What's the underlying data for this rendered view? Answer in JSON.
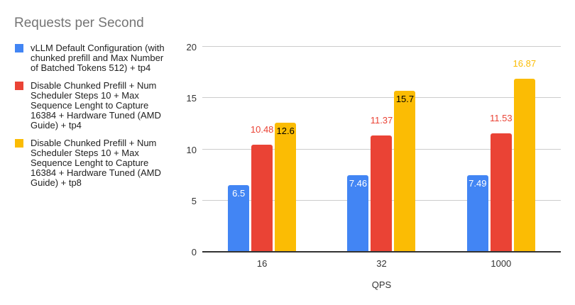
{
  "chart_data": {
    "type": "bar",
    "title": "Requests per Second",
    "xlabel": "QPS",
    "ylabel": "",
    "categories": [
      "16",
      "32",
      "1000"
    ],
    "ylim": [
      0,
      20
    ],
    "yticks": [
      0,
      5,
      10,
      15,
      20
    ],
    "grid": true,
    "legend_position": "left",
    "series": [
      {
        "name": "vLLM Default Configuration (with chunked prefill and Max Number of Batched Tokens 512) + tp4",
        "color": "#4285F4",
        "values": [
          6.5,
          7.46,
          7.49
        ],
        "data_labels": [
          {
            "text": "6.5",
            "position": "inside",
            "color": "#ffffff"
          },
          {
            "text": "7.46",
            "position": "inside",
            "color": "#ffffff"
          },
          {
            "text": "7.49",
            "position": "inside",
            "color": "#ffffff"
          }
        ]
      },
      {
        "name": "Disable Chunked Prefill + Num Scheduler Steps 10 + Max Sequence Lenght to Capture 16384 + Hardware Tuned (AMD Guide) + tp4",
        "color": "#EA4335",
        "values": [
          10.48,
          11.37,
          11.53
        ],
        "data_labels": [
          {
            "text": "10.48",
            "position": "above",
            "color": "#EA4335"
          },
          {
            "text": "11.37",
            "position": "above",
            "color": "#EA4335"
          },
          {
            "text": "11.53",
            "position": "above",
            "color": "#EA4335"
          }
        ]
      },
      {
        "name": "Disable Chunked Prefill + Num Scheduler Steps 10 + Max Sequence Lenght to Capture 16384 + Hardware Tuned (AMD Guide) + tp8",
        "color": "#FBBC04",
        "values": [
          12.6,
          15.7,
          16.87
        ],
        "data_labels": [
          {
            "text": "12.6",
            "position": "inside",
            "color": "#000000"
          },
          {
            "text": "15.7",
            "position": "inside",
            "color": "#000000"
          },
          {
            "text": "16.87",
            "position": "above",
            "color": "#FBBC04"
          }
        ]
      }
    ]
  },
  "styles": {
    "background": "#ffffff",
    "title_color": "#757575",
    "grid_color": "#cccccc",
    "axis_line_color": "#333333",
    "tick_label_color": "#333333",
    "legend_text_color": "#212121"
  }
}
